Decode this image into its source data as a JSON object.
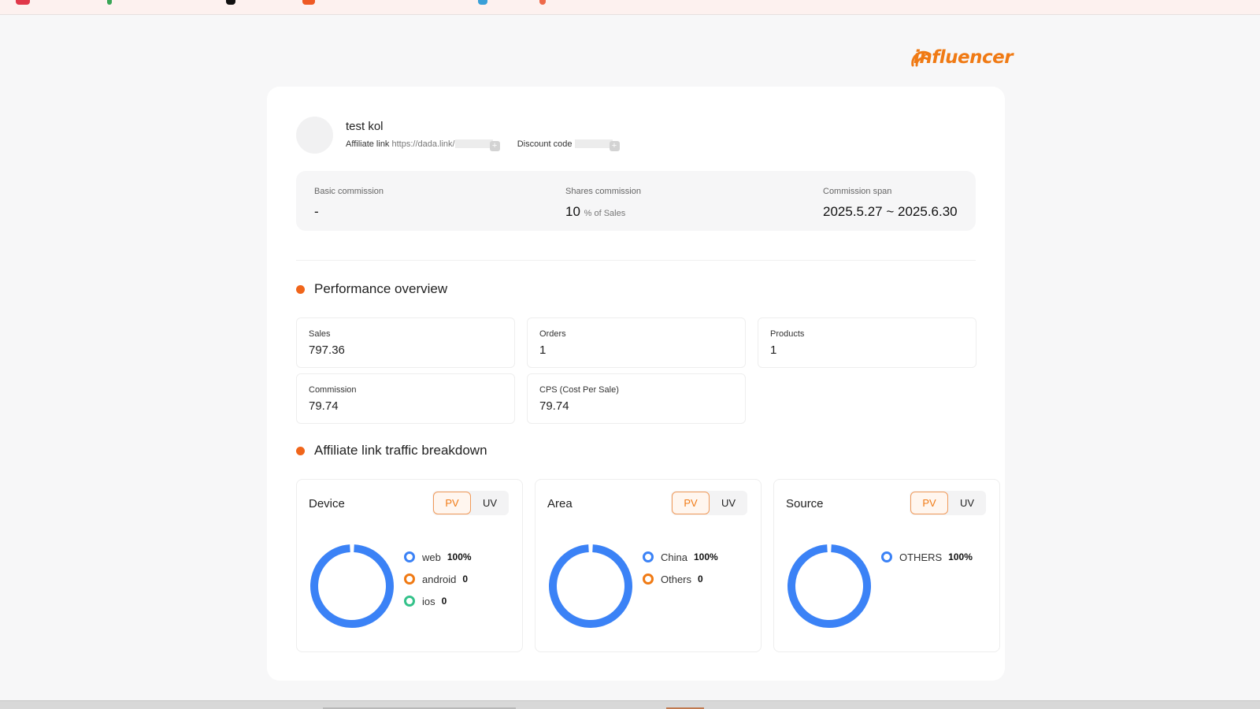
{
  "brand": {
    "logo_text": "influencer",
    "accent": "#f07a14",
    "chart_color": "#3b82f6"
  },
  "profile": {
    "name": "test kol",
    "affiliate_label": "Affiliate link",
    "affiliate_url": "https://dada.link/",
    "discount_label": "Discount code"
  },
  "commission": {
    "basic_label": "Basic commission",
    "basic_value": "-",
    "shares_label": "Shares commission",
    "shares_value": "10",
    "shares_unit": "% of Sales",
    "span_label": "Commission span",
    "span_value": "2025.5.27 ~ 2025.6.30"
  },
  "performance": {
    "title": "Performance overview",
    "metrics": [
      {
        "label": "Sales",
        "value": "797.36"
      },
      {
        "label": "Orders",
        "value": "1"
      },
      {
        "label": "Products",
        "value": "1"
      },
      {
        "label": "Commission",
        "value": "79.74"
      },
      {
        "label": "CPS (Cost Per Sale)",
        "value": "79.74"
      }
    ]
  },
  "traffic": {
    "title": "Affiliate link traffic breakdown",
    "toggle": {
      "pv": "PV",
      "uv": "UV"
    },
    "panels": [
      {
        "title": "Device",
        "legend": [
          {
            "name": "web",
            "value": "100%",
            "color": "#3b82f6"
          },
          {
            "name": "android",
            "value": "0",
            "color": "#f07a14"
          },
          {
            "name": "ios",
            "value": "0",
            "color": "#34c28a"
          }
        ]
      },
      {
        "title": "Area",
        "legend": [
          {
            "name": "China",
            "value": "100%",
            "color": "#3b82f6"
          },
          {
            "name": "Others",
            "value": "0",
            "color": "#f07a14"
          }
        ]
      },
      {
        "title": "Source",
        "legend": [
          {
            "name": "OTHERS",
            "value": "100%",
            "color": "#3b82f6"
          }
        ]
      }
    ]
  }
}
